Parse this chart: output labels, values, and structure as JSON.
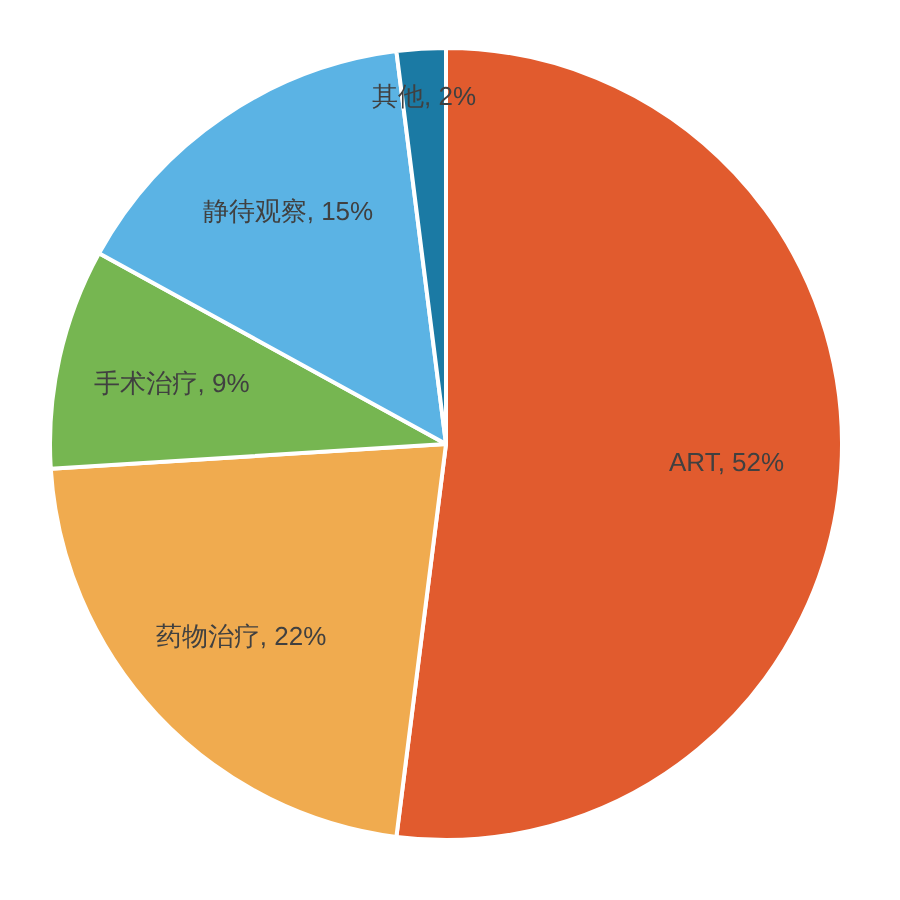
{
  "chart_data": {
    "type": "pie",
    "categories": [
      "ART",
      "药物治疗",
      "手术治疗",
      "静待观察",
      "其他"
    ],
    "values": [
      52,
      22,
      9,
      15,
      2
    ],
    "value_labels": [
      "52%",
      "22%",
      "9%",
      "15%",
      "2%"
    ],
    "colors": [
      "#e15b2e",
      "#f0ab4f",
      "#76b651",
      "#5bb3e4",
      "#1b7aa4"
    ]
  }
}
